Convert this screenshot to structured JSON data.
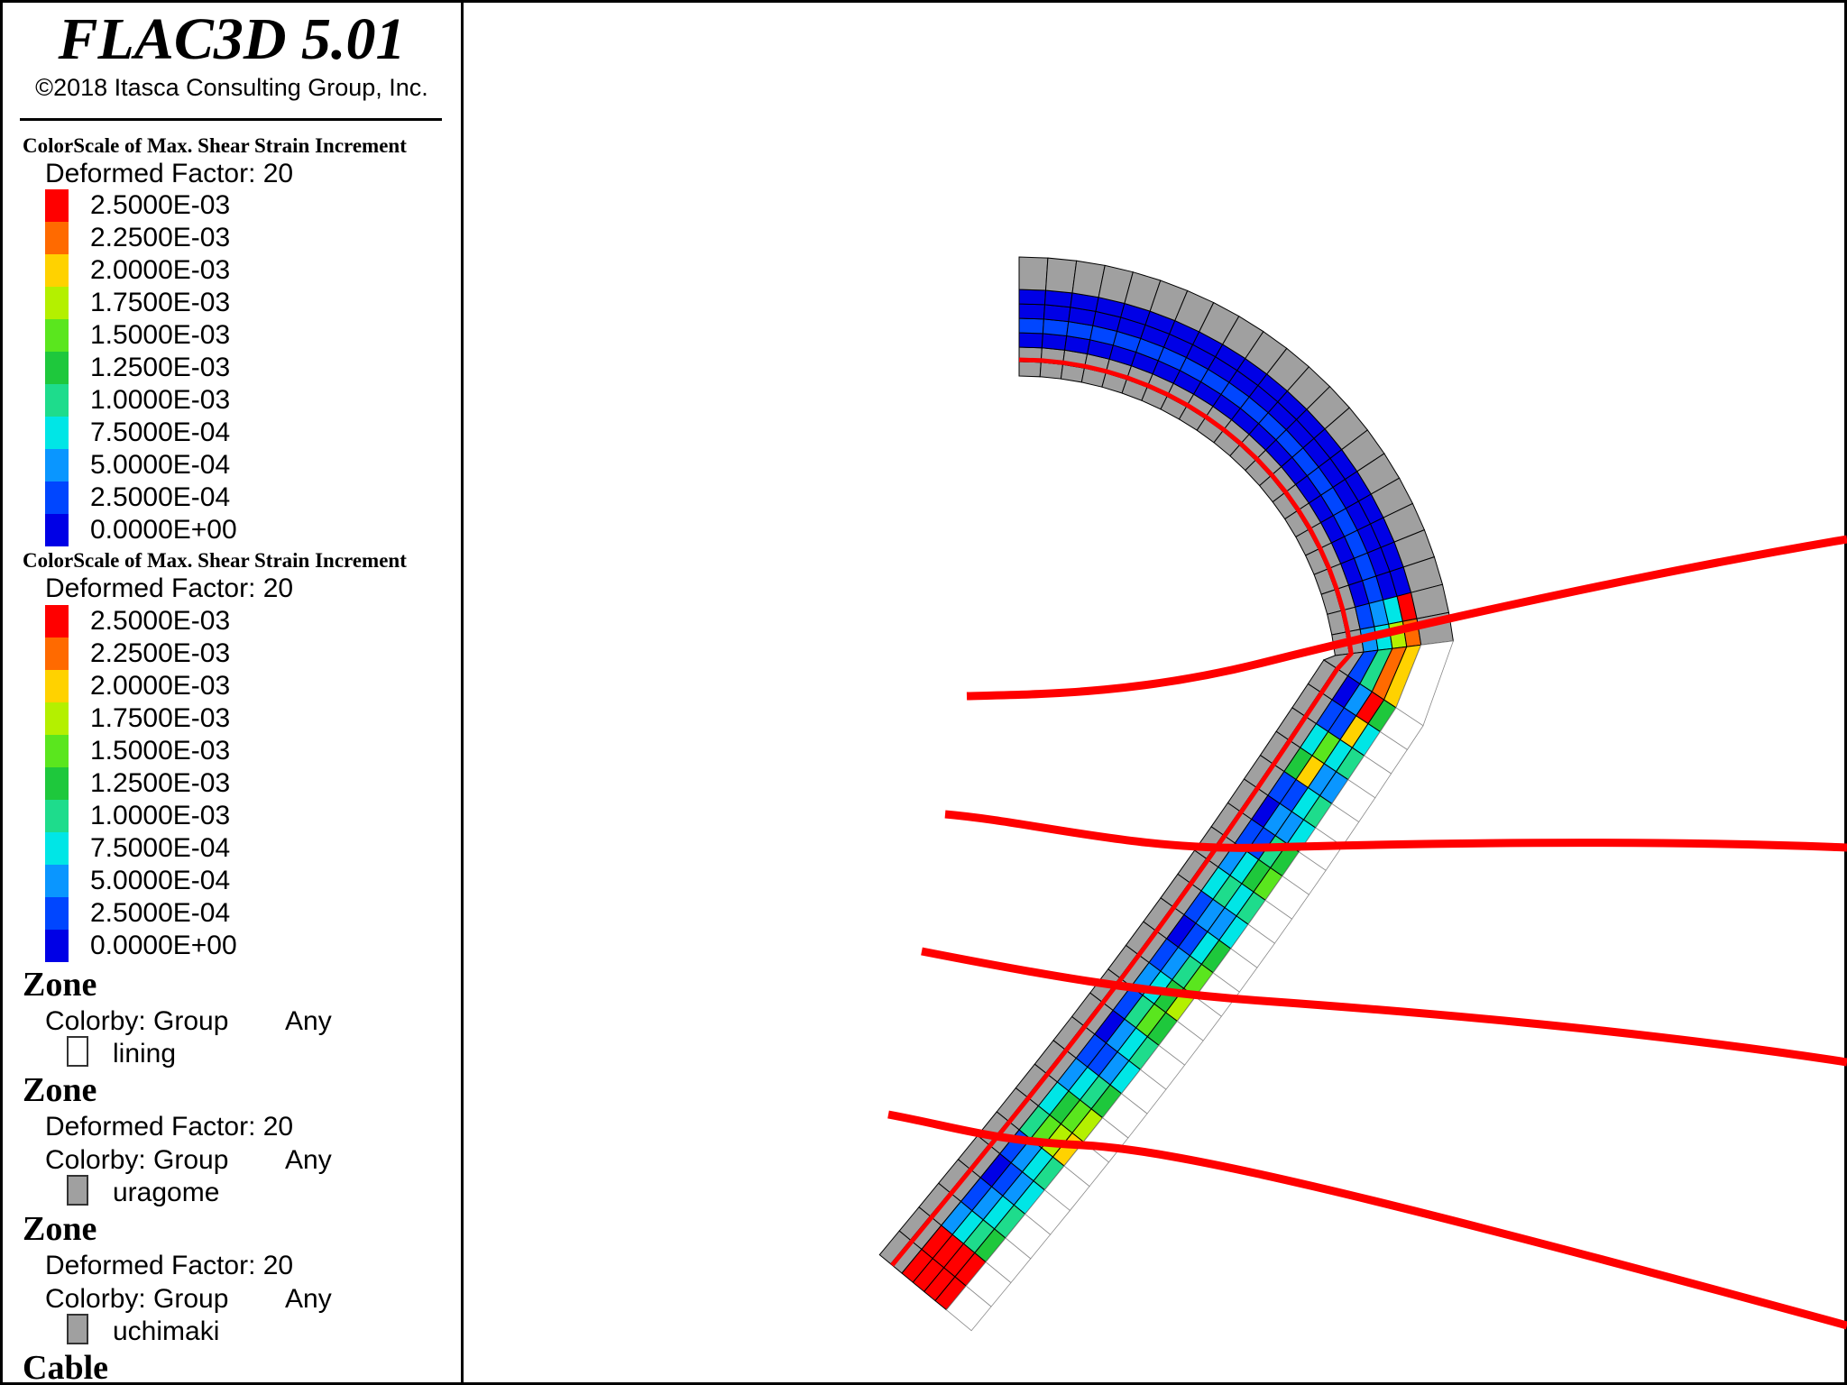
{
  "app": {
    "title": "FLAC3D 5.01",
    "copyright": "©2018 Itasca Consulting Group, Inc."
  },
  "colorscales": [
    {
      "title": "ColorScale of Max. Shear Strain Increment",
      "deformed_factor": "Deformed Factor: 20",
      "labels": [
        "2.5000E-03",
        "2.2500E-03",
        "2.0000E-03",
        "1.7500E-03",
        "1.5000E-03",
        "1.2500E-03",
        "1.0000E-03",
        "7.5000E-04",
        "5.0000E-04",
        "2.5000E-04",
        "0.0000E+00"
      ]
    },
    {
      "title": "ColorScale of Max. Shear Strain Increment",
      "deformed_factor": "Deformed Factor: 20",
      "labels": [
        "2.5000E-03",
        "2.2500E-03",
        "2.0000E-03",
        "1.7500E-03",
        "1.5000E-03",
        "1.2500E-03",
        "1.0000E-03",
        "7.5000E-04",
        "5.0000E-04",
        "2.5000E-04",
        "0.0000E+00"
      ]
    }
  ],
  "scale_colors": [
    "#ff0000",
    "#ff6a00",
    "#ffd200",
    "#b4f000",
    "#5ae61e",
    "#1ec83c",
    "#1edc8c",
    "#00e6e6",
    "#0a96ff",
    "#0046ff",
    "#0000e6"
  ],
  "zones": [
    {
      "head": "Zone",
      "colorby": "Colorby: Group",
      "any": "Any",
      "group": "lining",
      "swatch": "#ffffff"
    },
    {
      "head": "Zone",
      "deformed_factor": "Deformed Factor: 20",
      "colorby": "Colorby: Group",
      "any": "Any",
      "group": "uragome",
      "swatch": "#a0a0a0"
    },
    {
      "head": "Zone",
      "deformed_factor": "Deformed Factor: 20",
      "colorby": "Colorby: Group",
      "any": "Any",
      "group": "uchimaki",
      "swatch": "#a0a0a0"
    }
  ],
  "cable_head": "Cable",
  "plot": {
    "cable_color": "#ff0000",
    "uragome_color": "#a0a0a0",
    "lining_color": "#ffffff"
  }
}
